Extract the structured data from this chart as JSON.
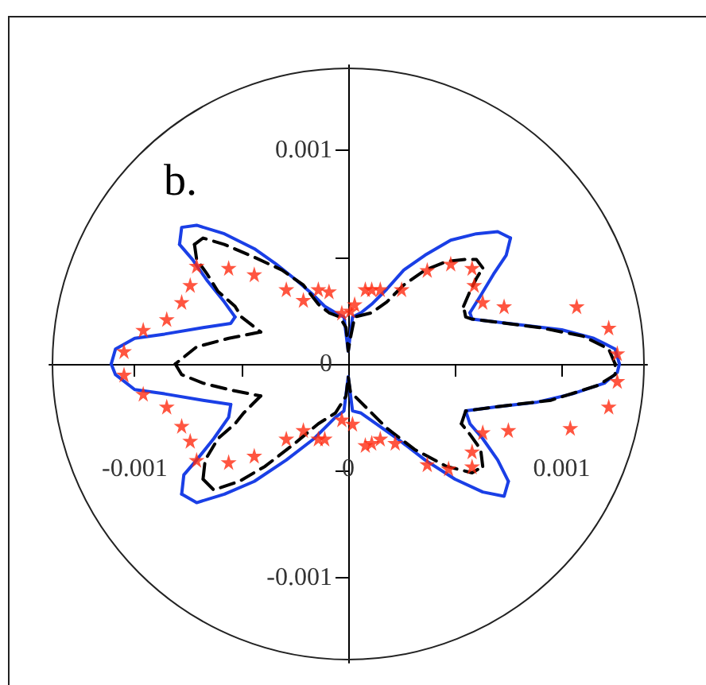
{
  "chart_data": {
    "type": "line",
    "annotations": [
      "b."
    ],
    "xlim": [
      -0.0014,
      0.0014
    ],
    "ylim": [
      -0.0014,
      0.0014
    ],
    "xticks": [
      -0.001,
      {
        "value": -0.0005,
        "label": null
      },
      0,
      {
        "value": 0.0005,
        "label": null
      },
      0.001
    ],
    "yticks": [
      -0.001,
      {
        "value": -0.0005,
        "label": null
      },
      0,
      {
        "value": 0.0005,
        "label": null
      },
      0.001
    ],
    "series": [
      {
        "color": "#1a3fe6",
        "line_style": "solid",
        "marker": "none",
        "x": [
          0.00127,
          0.00125,
          0.00115,
          0.001,
          0.00075,
          0.00058,
          0.00057,
          0.00062,
          0.00068,
          0.00074,
          0.00076,
          0.0007,
          0.0006,
          0.00048,
          0.00036,
          0.00026,
          0.00018,
          0.00011,
          6e-05,
          2e-05,
          0,
          -2e-05,
          -6e-05,
          -0.00011,
          -0.00016,
          -0.00024,
          -0.00034,
          -0.00044,
          -0.00058,
          -0.00071,
          -0.00078,
          -0.00079,
          -0.00073,
          -0.00066,
          -0.00058,
          -0.00053,
          -0.00055,
          -0.00068,
          -0.00086,
          -0.001,
          -0.00109,
          -0.00111,
          -0.00109,
          -0.001,
          -0.00086,
          -0.00068,
          -0.00055,
          -0.00056,
          -0.00063,
          -0.00071,
          -0.00077,
          -0.00078,
          -0.00071,
          -0.00058,
          -0.00044,
          -0.00029,
          -0.00016,
          -6e-05,
          -2e-05,
          0,
          2e-05,
          6e-05,
          0.00013,
          0.00023,
          0.00036,
          0.0005,
          0.00063,
          0.00073,
          0.00075,
          0.0007,
          0.00063,
          0.00057,
          0.00055,
          0.0007,
          0.00088,
          0.00105,
          0.0012,
          0.00126,
          0.00127
        ],
        "values": [
          0,
          7e-05,
          0.00012,
          0.00016,
          0.00019,
          0.00021,
          0.00024,
          0.00032,
          0.00042,
          0.00051,
          0.00059,
          0.00062,
          0.00061,
          0.00058,
          0.00051,
          0.00044,
          0.00035,
          0.00028,
          0.00024,
          0.00022,
          6e-05,
          0.00022,
          0.00024,
          0.00027,
          0.00032,
          0.00039,
          0.00047,
          0.00054,
          0.00061,
          0.00065,
          0.00064,
          0.00056,
          0.00049,
          0.00039,
          0.00029,
          0.00022,
          0.00019,
          0.00017,
          0.00014,
          0.00012,
          7e-05,
          0,
          -5e-05,
          -0.00012,
          -0.00014,
          -0.00017,
          -0.00019,
          -0.00025,
          -0.00035,
          -0.00045,
          -0.00052,
          -0.00061,
          -0.00065,
          -0.00061,
          -0.00055,
          -0.00045,
          -0.00035,
          -0.00025,
          -0.00022,
          -6e-05,
          -0.00022,
          -0.00023,
          -0.00028,
          -0.00035,
          -0.00045,
          -0.00054,
          -0.0006,
          -0.00062,
          -0.00055,
          -0.00045,
          -0.00035,
          -0.00028,
          -0.00022,
          -0.0002,
          -0.00018,
          -0.00014,
          -9e-05,
          -4e-05,
          0
        ]
      },
      {
        "color": "#000000",
        "line_style": "dashed",
        "marker": "none",
        "x": [
          0.00125,
          0.00122,
          0.0011,
          0.0009,
          0.00058,
          0.00055,
          0.00054,
          0.00057,
          0.0006,
          0.00063,
          0.0006,
          0.00055,
          0.00046,
          0.00036,
          0.00026,
          0.00018,
          0.00011,
          3e-05,
          1e-05,
          0,
          -1e-05,
          -4e-05,
          -9e-05,
          -0.00014,
          -0.00021,
          -0.00031,
          -0.00044,
          -0.00058,
          -0.00068,
          -0.00072,
          -0.00071,
          -0.00066,
          -0.00061,
          -0.00053,
          -0.0005,
          -0.00041,
          -0.00056,
          -0.00071,
          -0.00081,
          -0.00078,
          -0.00068,
          -0.00056,
          -0.00041,
          -0.00049,
          -0.00053,
          -0.00061,
          -0.00067,
          -0.00068,
          -0.00063,
          -0.00051,
          -0.00039,
          -0.00026,
          -0.00014,
          -6e-05,
          -1e-05,
          0,
          1e-05,
          8e-05,
          0.00018,
          0.00031,
          0.00046,
          0.00058,
          0.00063,
          0.00062,
          0.00057,
          0.00053,
          0.00055,
          0.0007,
          0.00095,
          0.00117,
          0.00125,
          0.00125
        ],
        "values": [
          0,
          7e-05,
          0.00013,
          0.00017,
          0.00021,
          0.00022,
          0.00027,
          0.00034,
          0.0004,
          0.00045,
          0.00049,
          0.00049,
          0.00048,
          0.00044,
          0.00037,
          0.00029,
          0.00024,
          0.00022,
          0.00012,
          6e-05,
          0.00017,
          0.00022,
          0.00024,
          0.00028,
          0.00037,
          0.00044,
          0.0005,
          0.00056,
          0.00059,
          0.00056,
          0.00049,
          0.00042,
          0.00034,
          0.00027,
          0.00022,
          0.00015,
          0.00012,
          8e-05,
          0,
          -5e-05,
          -9e-05,
          -0.00012,
          -0.00015,
          -0.00023,
          -0.00028,
          -0.00035,
          -0.00045,
          -0.00054,
          -0.00059,
          -0.00055,
          -0.00048,
          -0.00038,
          -0.00028,
          -0.00023,
          -0.00015,
          -6e-05,
          -0.00013,
          -0.0002,
          -0.0003,
          -0.0004,
          -0.00048,
          -0.00051,
          -0.00048,
          -0.0004,
          -0.00033,
          -0.00028,
          -0.00022,
          -0.0002,
          -0.00017,
          -0.0001,
          -5e-05,
          0
        ]
      },
      {
        "type": "scatter",
        "color": "#ff2a10",
        "marker": "star",
        "x": [
          0.00107,
          0.00122,
          0.00126,
          0.00126,
          0.00122,
          0.00104,
          0.00075,
          0.00063,
          0.00058,
          0.00058,
          0.00047,
          0.00037,
          0.00022,
          0.00015,
          0.00011,
          8e-05,
          2e-05,
          -3e-05,
          0.00073,
          0.00063,
          0.00059,
          0.00058,
          0.00048,
          0.00037,
          0.00025,
          0.00015,
          0.00011,
          8e-05,
          3e-05,
          1e-05,
          -3e-05,
          -0.00105,
          -0.00105,
          -0.00096,
          -0.00096,
          -0.00085,
          -0.00085,
          -0.00078,
          -0.00078,
          -0.00074,
          -0.00074,
          -0.00071,
          -0.00071,
          -0.00056,
          -0.00056,
          -0.00044,
          -0.00044,
          -0.00029,
          -0.00029,
          -0.00021,
          -0.00021,
          -0.00014,
          -0.00014,
          -9e-05,
          -0.00011
        ],
        "values": [
          0.00027,
          0.00017,
          5e-05,
          -8e-05,
          -0.0002,
          -0.0003,
          -0.00031,
          -0.00032,
          -0.00041,
          -0.00048,
          -0.00049,
          -0.00047,
          -0.00037,
          -0.00035,
          -0.00037,
          -0.00038,
          -0.00028,
          -0.00026,
          0.00027,
          0.00029,
          0.00037,
          0.00045,
          0.00047,
          0.00044,
          0.00035,
          0.00035,
          0.00035,
          0.00035,
          0.00028,
          0.00025,
          0.00024,
          6e-05,
          -5e-05,
          0.00016,
          -0.00014,
          0.00021,
          -0.0002,
          0.00029,
          -0.00029,
          0.00037,
          -0.00036,
          0.00046,
          -0.00045,
          0.00045,
          -0.00046,
          0.00042,
          -0.00043,
          0.00035,
          -0.00035,
          0.0003,
          -0.00031,
          0.00035,
          -0.00035,
          0.00034,
          -0.00035
        ]
      }
    ]
  }
}
